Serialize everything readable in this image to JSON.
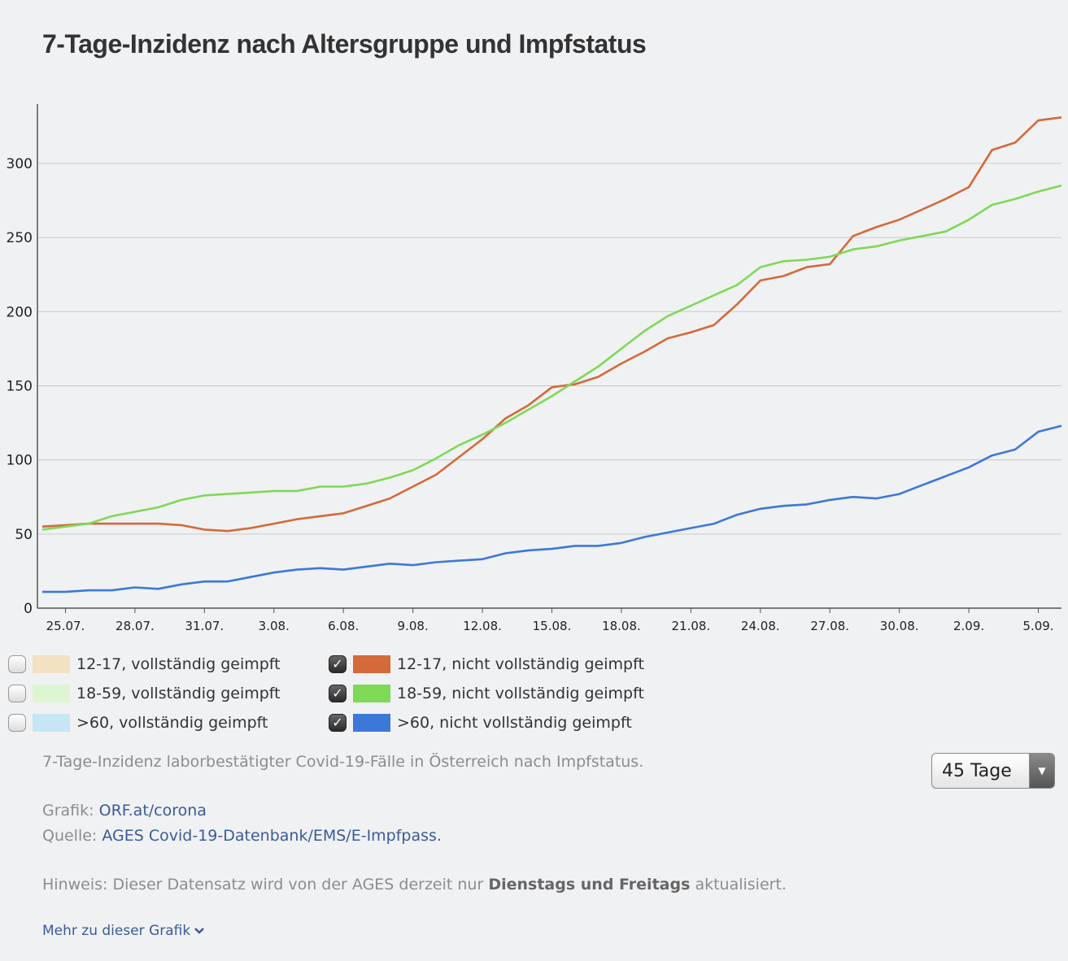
{
  "title": "7-Tage-Inzidenz nach Altersgruppe und Impfstatus",
  "chart_data": {
    "type": "line",
    "x": [
      "24.07.",
      "25.07.",
      "26.07.",
      "27.07.",
      "28.07.",
      "29.07.",
      "30.07.",
      "31.07.",
      "01.08.",
      "02.08.",
      "03.08.",
      "04.08.",
      "05.08.",
      "06.08.",
      "07.08.",
      "08.08.",
      "09.08.",
      "10.08.",
      "11.08.",
      "12.08.",
      "13.08.",
      "14.08.",
      "15.08.",
      "16.08.",
      "17.08.",
      "18.08.",
      "19.08.",
      "20.08.",
      "21.08.",
      "22.08.",
      "23.08.",
      "24.08.",
      "25.08.",
      "26.08.",
      "27.08.",
      "28.08.",
      "29.08.",
      "30.08.",
      "31.08.",
      "01.09.",
      "02.09.",
      "03.09.",
      "04.09.",
      "05.09.",
      "06.09."
    ],
    "xtick_labels": [
      "25.07.",
      "28.07.",
      "31.07.",
      "3.08.",
      "6.08.",
      "9.08.",
      "12.08.",
      "15.08.",
      "18.08.",
      "21.08.",
      "24.08.",
      "27.08.",
      "30.08.",
      "2.09.",
      "5.09."
    ],
    "xtick_index": [
      1,
      4,
      7,
      10,
      13,
      16,
      19,
      22,
      25,
      28,
      31,
      34,
      37,
      40,
      43
    ],
    "ylim": [
      0,
      340
    ],
    "yticks": [
      0,
      50,
      100,
      150,
      200,
      250,
      300
    ],
    "grid": true,
    "series": [
      {
        "name": "12-17, nicht vollständig geimpft",
        "color": "#d4693a",
        "values": [
          55,
          56,
          57,
          57,
          57,
          57,
          56,
          53,
          52,
          54,
          57,
          60,
          62,
          64,
          69,
          74,
          82,
          90,
          102,
          114,
          128,
          137,
          149,
          151,
          156,
          165,
          173,
          182,
          186,
          191,
          205,
          221,
          224,
          230,
          232,
          251,
          257,
          262,
          269,
          276,
          284,
          309,
          314,
          329,
          331
        ]
      },
      {
        "name": "18-59, nicht vollständig geimpft",
        "color": "#7ed957",
        "values": [
          53,
          55,
          57,
          62,
          65,
          68,
          73,
          76,
          77,
          78,
          79,
          79,
          82,
          82,
          84,
          88,
          93,
          101,
          110,
          117,
          125,
          134,
          143,
          153,
          163,
          175,
          187,
          197,
          204,
          211,
          218,
          230,
          234,
          235,
          237,
          242,
          244,
          248,
          251,
          254,
          262,
          272,
          276,
          281,
          285
        ]
      },
      {
        "name": ">60, nicht vollständig geimpft",
        "color": "#3c78d8",
        "values": [
          11,
          11,
          12,
          12,
          14,
          13,
          16,
          18,
          18,
          21,
          24,
          26,
          27,
          26,
          28,
          30,
          29,
          31,
          32,
          33,
          37,
          39,
          40,
          42,
          42,
          44,
          48,
          51,
          54,
          57,
          63,
          67,
          69,
          70,
          73,
          75,
          74,
          77,
          83,
          89,
          95,
          103,
          107,
          119,
          123
        ]
      }
    ]
  },
  "legend": [
    {
      "label": "12-17, vollständig geimpft",
      "color": "#f3e1c3",
      "checked": false
    },
    {
      "label": "12-17, nicht vollständig geimpft",
      "color": "#d4693a",
      "checked": true
    },
    {
      "label": "18-59, vollständig geimpft",
      "color": "#def5d2",
      "checked": false
    },
    {
      "label": "18-59, nicht vollständig geimpft",
      "color": "#7ed957",
      "checked": true
    },
    {
      "label": ">60, vollständig geimpft",
      "color": "#c6e6f5",
      "checked": false
    },
    {
      "label": ">60, nicht vollständig geimpft",
      "color": "#3c78d8",
      "checked": true
    }
  ],
  "caption": "7-Tage-Inzidenz laborbestätigter Covid-19-Fälle in Österreich nach Impfstatus.",
  "range_select": {
    "value": "45 Tage"
  },
  "grafik": {
    "label": "Grafik:",
    "link": "ORF.at/corona"
  },
  "quelle": {
    "label": "Quelle:",
    "link": "AGES Covid-19-Datenbank/EMS/E-Impfpass."
  },
  "note": {
    "prefix": "Hinweis: Dieser Datensatz wird von der AGES derzeit nur",
    "bold": "Dienstags und Freitags",
    "suffix": "aktualisiert."
  },
  "more_link": "Mehr zu dieser Grafik"
}
